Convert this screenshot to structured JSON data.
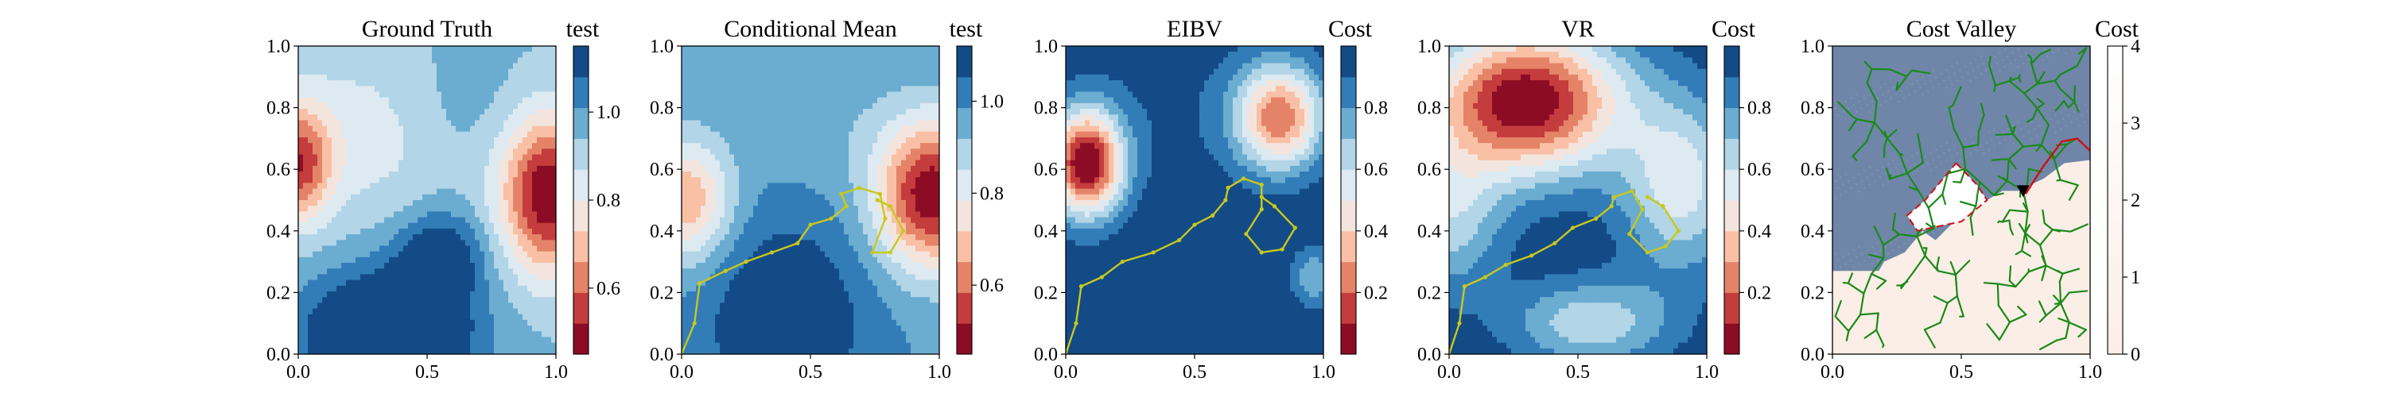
{
  "figure": {
    "panels": [
      {
        "title": "Ground Truth",
        "cbar_label": "test"
      },
      {
        "title": "Conditional Mean",
        "cbar_label": "test"
      },
      {
        "title": "EIBV",
        "cbar_label": "Cost"
      },
      {
        "title": "VR",
        "cbar_label": "Cost"
      },
      {
        "title": "Cost Valley",
        "cbar_label": "Cost"
      }
    ]
  },
  "colors": {
    "rdbu": [
      "#67001f",
      "#b2182b",
      "#d6604d",
      "#f4a582",
      "#fddbc7",
      "#e8eef3",
      "#d1e5f0",
      "#92c5de",
      "#4393c3",
      "#2166ac",
      "#053061"
    ],
    "path": "#c8c81e",
    "tree": "#1a8a1a",
    "obstacle": "#6f86a8",
    "valley_low": "#fbeee6",
    "valley_high": "#ffffff",
    "red_path": "#cc1111"
  },
  "chart_data": [
    {
      "type": "heatmap",
      "title": "Ground Truth",
      "xlim": [
        0,
        1
      ],
      "ylim": [
        0,
        1
      ],
      "xticks": [
        "0.0",
        "0.5",
        "1.0"
      ],
      "yticks": [
        "0.0",
        "0.2",
        "0.4",
        "0.6",
        "0.8",
        "1.0"
      ],
      "colorbar": {
        "label": "test",
        "range": [
          0.45,
          1.15
        ],
        "ticks": [
          "0.6",
          "0.8",
          "1.0"
        ],
        "tick_values": [
          0.6,
          0.8,
          1.0
        ],
        "bands": 10,
        "colormap": "RdBu"
      },
      "field": {
        "base": 0.95,
        "bumps": [
          {
            "x": 0.97,
            "y": 0.52,
            "sx": 0.13,
            "sy": 0.18,
            "amp": -0.5
          },
          {
            "x": 0.0,
            "y": 0.62,
            "sx": 0.09,
            "sy": 0.13,
            "amp": -0.38
          },
          {
            "x": 0.35,
            "y": 0.06,
            "sx": 0.22,
            "sy": 0.14,
            "amp": 0.38
          },
          {
            "x": 0.55,
            "y": 0.32,
            "sx": 0.12,
            "sy": 0.1,
            "amp": 0.22
          },
          {
            "x": 0.28,
            "y": 0.72,
            "sx": 0.25,
            "sy": 0.2,
            "amp": -0.12
          },
          {
            "x": 0.6,
            "y": 0.8,
            "sx": 0.2,
            "sy": 0.15,
            "amp": 0.05
          }
        ]
      }
    },
    {
      "type": "heatmap",
      "title": "Conditional Mean",
      "xlim": [
        0,
        1
      ],
      "ylim": [
        0,
        1
      ],
      "xticks": [
        "0.0",
        "0.5",
        "1.0"
      ],
      "yticks": [
        "0.0",
        "0.2",
        "0.4",
        "0.6",
        "0.8",
        "1.0"
      ],
      "colorbar": {
        "label": "test",
        "range": [
          0.45,
          1.12
        ],
        "ticks": [
          "0.6",
          "0.8",
          "1.0"
        ],
        "tick_values": [
          0.6,
          0.8,
          1.0
        ],
        "bands": 10,
        "colormap": "RdBu"
      },
      "field": {
        "base": 0.98,
        "bumps": [
          {
            "x": 0.97,
            "y": 0.52,
            "sx": 0.15,
            "sy": 0.17,
            "amp": -0.52
          },
          {
            "x": 0.02,
            "y": 0.5,
            "sx": 0.12,
            "sy": 0.14,
            "amp": -0.32
          },
          {
            "x": 0.4,
            "y": 0.12,
            "sx": 0.22,
            "sy": 0.22,
            "amp": 0.16
          },
          {
            "x": 0.55,
            "y": 0.75,
            "sx": 0.2,
            "sy": 0.15,
            "amp": -0.04
          }
        ]
      },
      "path": [
        [
          0.0,
          0.0
        ],
        [
          0.05,
          0.1
        ],
        [
          0.07,
          0.23
        ],
        [
          0.17,
          0.27
        ],
        [
          0.25,
          0.3
        ],
        [
          0.35,
          0.33
        ],
        [
          0.45,
          0.36
        ],
        [
          0.5,
          0.42
        ],
        [
          0.58,
          0.44
        ],
        [
          0.64,
          0.48
        ],
        [
          0.62,
          0.52
        ],
        [
          0.69,
          0.54
        ],
        [
          0.77,
          0.52
        ],
        [
          0.79,
          0.44
        ],
        [
          0.74,
          0.33
        ],
        [
          0.81,
          0.33
        ],
        [
          0.86,
          0.4
        ],
        [
          0.81,
          0.48
        ],
        [
          0.76,
          0.5
        ]
      ]
    },
    {
      "type": "heatmap",
      "title": "EIBV",
      "xlim": [
        0,
        1
      ],
      "ylim": [
        0,
        1
      ],
      "xticks": [
        "0.0",
        "0.5",
        "1.0"
      ],
      "yticks": [
        "0.0",
        "0.2",
        "0.4",
        "0.6",
        "0.8",
        "1.0"
      ],
      "colorbar": {
        "label": "Cost",
        "range": [
          0.0,
          1.0
        ],
        "ticks": [
          "0.2",
          "0.4",
          "0.6",
          "0.8"
        ],
        "tick_values": [
          0.2,
          0.4,
          0.6,
          0.8
        ],
        "bands": 10,
        "colormap": "RdBu"
      },
      "field": {
        "base": 1.0,
        "bumps": [
          {
            "x": 0.08,
            "y": 0.62,
            "sx": 0.1,
            "sy": 0.12,
            "amp": -1.0
          },
          {
            "x": 0.83,
            "y": 0.77,
            "sx": 0.12,
            "sy": 0.12,
            "amp": -0.75
          },
          {
            "x": 0.96,
            "y": 0.25,
            "sx": 0.06,
            "sy": 0.07,
            "amp": -0.28
          },
          {
            "x": 0.45,
            "y": 0.8,
            "sx": 0.35,
            "sy": 0.25,
            "amp": -0.08
          }
        ]
      },
      "path": [
        [
          0.0,
          0.0
        ],
        [
          0.04,
          0.1
        ],
        [
          0.06,
          0.22
        ],
        [
          0.14,
          0.25
        ],
        [
          0.22,
          0.3
        ],
        [
          0.34,
          0.33
        ],
        [
          0.44,
          0.37
        ],
        [
          0.5,
          0.42
        ],
        [
          0.57,
          0.45
        ],
        [
          0.62,
          0.5
        ],
        [
          0.63,
          0.54
        ],
        [
          0.69,
          0.57
        ],
        [
          0.76,
          0.55
        ],
        [
          0.76,
          0.47
        ],
        [
          0.7,
          0.39
        ],
        [
          0.76,
          0.33
        ],
        [
          0.84,
          0.34
        ],
        [
          0.89,
          0.41
        ],
        [
          0.81,
          0.48
        ],
        [
          0.76,
          0.51
        ]
      ]
    },
    {
      "type": "heatmap",
      "title": "VR",
      "xlim": [
        0,
        1
      ],
      "ylim": [
        0,
        1
      ],
      "xticks": [
        "0.0",
        "0.5",
        "1.0"
      ],
      "yticks": [
        "0.0",
        "0.2",
        "0.4",
        "0.6",
        "0.8",
        "1.0"
      ],
      "colorbar": {
        "label": "Cost",
        "range": [
          0.0,
          1.0
        ],
        "ticks": [
          "0.2",
          "0.4",
          "0.6",
          "0.8"
        ],
        "tick_values": [
          0.2,
          0.4,
          0.6,
          0.8
        ],
        "bands": 10,
        "colormap": "RdBu"
      },
      "field": {
        "base": 1.0,
        "bumps": [
          {
            "x": 0.3,
            "y": 0.82,
            "sx": 0.27,
            "sy": 0.17,
            "amp": -1.0
          },
          {
            "x": 0.9,
            "y": 0.55,
            "sx": 0.16,
            "sy": 0.2,
            "amp": -0.45
          },
          {
            "x": 0.0,
            "y": 0.45,
            "sx": 0.15,
            "sy": 0.18,
            "amp": -0.35
          },
          {
            "x": 0.55,
            "y": 0.1,
            "sx": 0.22,
            "sy": 0.1,
            "amp": -0.38
          }
        ]
      },
      "path": [
        [
          0.0,
          0.0
        ],
        [
          0.04,
          0.1
        ],
        [
          0.06,
          0.22
        ],
        [
          0.14,
          0.25
        ],
        [
          0.22,
          0.29
        ],
        [
          0.32,
          0.32
        ],
        [
          0.41,
          0.36
        ],
        [
          0.48,
          0.41
        ],
        [
          0.57,
          0.44
        ],
        [
          0.63,
          0.48
        ],
        [
          0.64,
          0.51
        ],
        [
          0.71,
          0.53
        ],
        [
          0.75,
          0.47
        ],
        [
          0.7,
          0.39
        ],
        [
          0.77,
          0.33
        ],
        [
          0.84,
          0.35
        ],
        [
          0.89,
          0.4
        ],
        [
          0.83,
          0.48
        ],
        [
          0.77,
          0.51
        ]
      ]
    },
    {
      "type": "heatmap",
      "title": "Cost Valley",
      "xlim": [
        0,
        1
      ],
      "ylim": [
        0,
        1
      ],
      "xticks": [
        "0.0",
        "0.5",
        "1.0"
      ],
      "yticks": [
        "0.0",
        "0.2",
        "0.4",
        "0.6",
        "0.8",
        "1.0"
      ],
      "colorbar": {
        "label": "Cost",
        "range": [
          0,
          4
        ],
        "ticks": [
          "0",
          "1",
          "2",
          "3",
          "4"
        ],
        "tick_values": [
          0,
          1,
          2,
          3,
          4
        ],
        "colormap": "Reds-light"
      },
      "obstacle_boundary": [
        [
          0.0,
          0.27
        ],
        [
          0.18,
          0.27
        ],
        [
          0.2,
          0.3
        ],
        [
          0.28,
          0.33
        ],
        [
          0.35,
          0.4
        ],
        [
          0.4,
          0.37
        ],
        [
          0.46,
          0.42
        ],
        [
          0.52,
          0.45
        ],
        [
          0.58,
          0.49
        ],
        [
          0.66,
          0.53
        ],
        [
          0.72,
          0.53
        ],
        [
          0.82,
          0.57
        ],
        [
          0.9,
          0.62
        ],
        [
          1.0,
          0.63
        ]
      ],
      "red_polygon": [
        [
          0.48,
          0.62
        ],
        [
          0.56,
          0.55
        ],
        [
          0.6,
          0.5
        ],
        [
          0.5,
          0.43
        ],
        [
          0.44,
          0.42
        ],
        [
          0.33,
          0.4
        ],
        [
          0.29,
          0.45
        ],
        [
          0.36,
          0.5
        ],
        [
          0.41,
          0.55
        ]
      ],
      "red_route": [
        [
          0.75,
          0.52
        ],
        [
          0.81,
          0.6
        ],
        [
          0.89,
          0.69
        ],
        [
          0.95,
          0.7
        ],
        [
          1.0,
          0.66
        ]
      ],
      "marker": [
        0.74,
        0.53
      ]
    }
  ]
}
